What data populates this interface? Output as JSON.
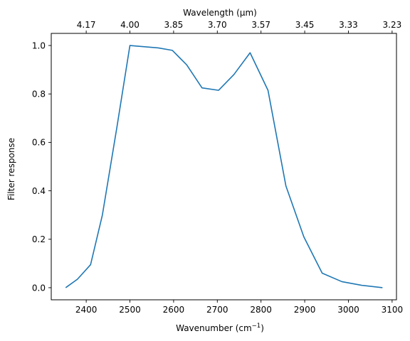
{
  "chart_data": {
    "type": "line",
    "xlabel_prefix": "Wavenumber (cm",
    "xlabel_sup": "−1",
    "xlabel_suffix": ")",
    "ylabel": "Filter response",
    "top_xlabel": "Wavelength (μm)",
    "xlim": [
      2320,
      3110
    ],
    "ylim": [
      -0.05,
      1.05
    ],
    "grid": false,
    "line_color": "#1f77b4",
    "x_ticks": [
      2400,
      2500,
      2600,
      2700,
      2800,
      2900,
      3000,
      3100
    ],
    "y_ticks": [
      0.0,
      0.2,
      0.4,
      0.6,
      0.8,
      1.0
    ],
    "y_tick_labels": [
      "0.0",
      "0.2",
      "0.4",
      "0.6",
      "0.8",
      "1.0"
    ],
    "top_ticks": [
      {
        "label": "4.17",
        "wavenumber": 2400
      },
      {
        "label": "4.00",
        "wavenumber": 2500
      },
      {
        "label": "3.85",
        "wavenumber": 2600
      },
      {
        "label": "3.70",
        "wavenumber": 2700
      },
      {
        "label": "3.57",
        "wavenumber": 2800
      },
      {
        "label": "3.45",
        "wavenumber": 2900
      },
      {
        "label": "3.33",
        "wavenumber": 3000
      },
      {
        "label": "3.23",
        "wavenumber": 3100
      }
    ],
    "series": [
      {
        "x": [
          2353,
          2380,
          2410,
          2437,
          2470,
          2500,
          2565,
          2597,
          2630,
          2665,
          2703,
          2738,
          2775,
          2816,
          2857,
          2898,
          2940,
          2985,
          3030,
          3078
        ],
        "y": [
          0.0,
          0.035,
          0.095,
          0.3,
          0.66,
          1.0,
          0.99,
          0.98,
          0.92,
          0.825,
          0.815,
          0.88,
          0.97,
          0.815,
          0.42,
          0.21,
          0.06,
          0.025,
          0.01,
          0.0
        ]
      }
    ]
  }
}
